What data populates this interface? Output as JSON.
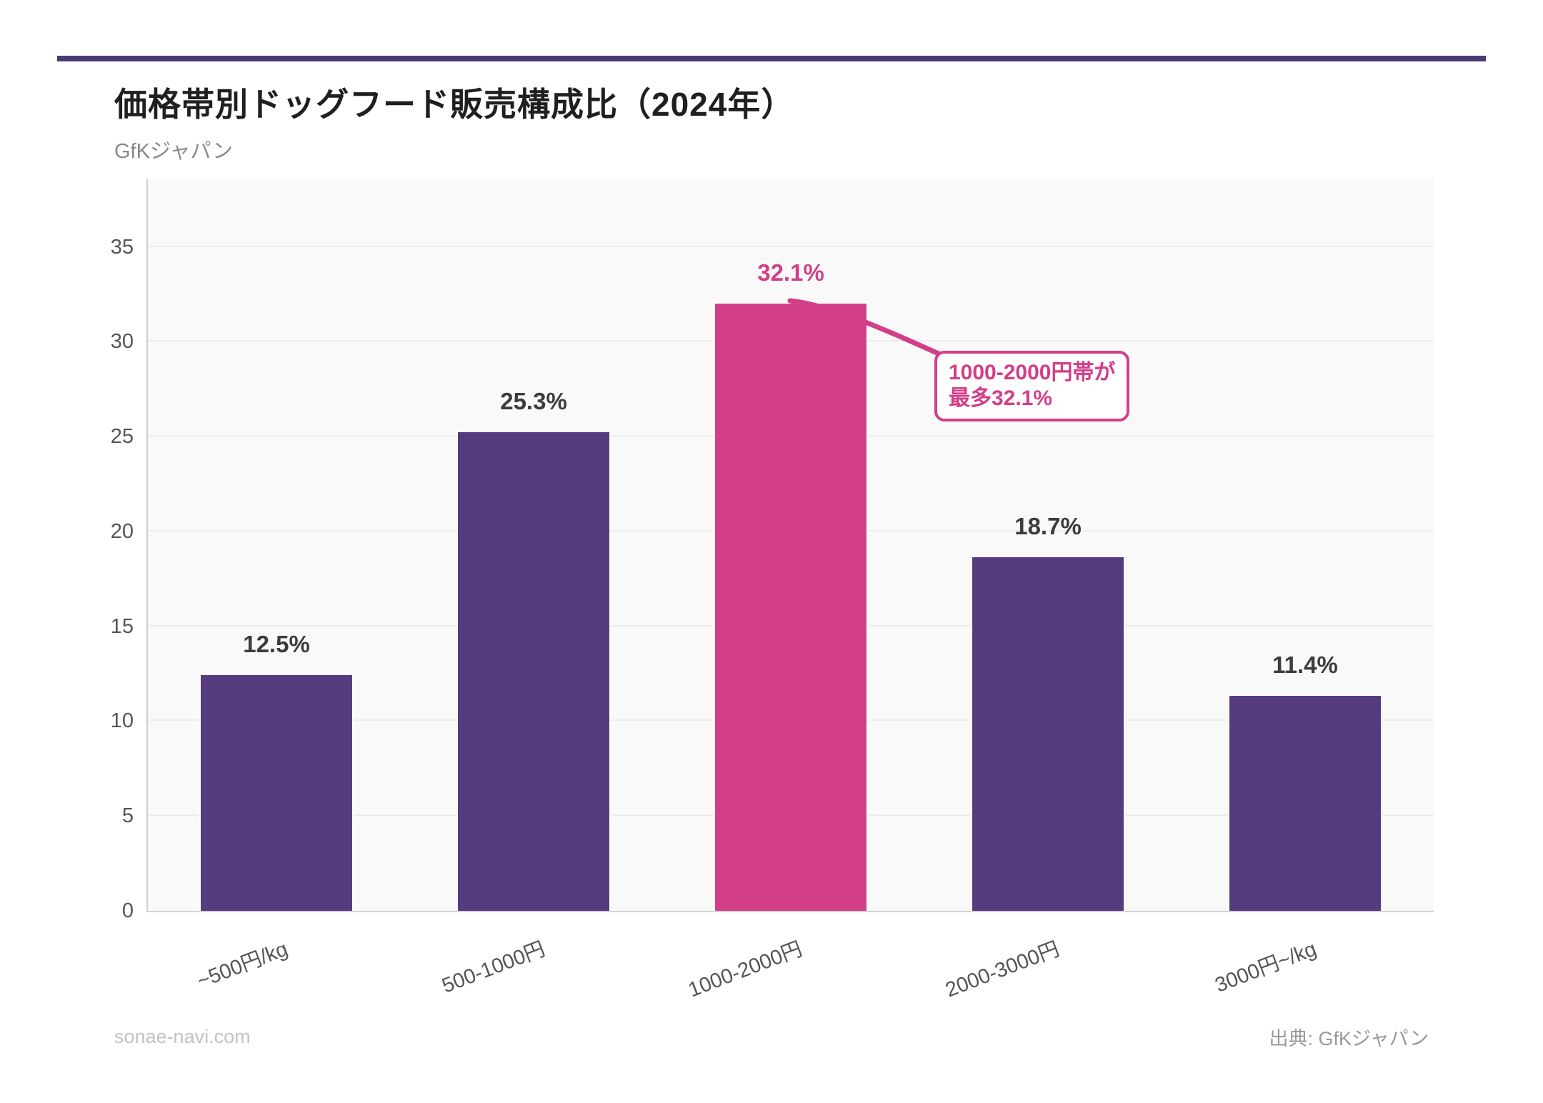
{
  "chart_data": {
    "type": "bar",
    "title": "価格帯別ドッグフード販売構成比（2024年）",
    "subtitle": "GfKジャパン",
    "categories": [
      "~500円/kg",
      "500-1000円",
      "1000-2000円",
      "2000-3000円",
      "3000円~/kg"
    ],
    "values": [
      12.5,
      25.3,
      32.1,
      18.7,
      11.4
    ],
    "value_labels": [
      "12.5%",
      "25.3%",
      "32.1%",
      "18.7%",
      "11.4%"
    ],
    "highlight_index": 2,
    "yticks": [
      0,
      5,
      10,
      15,
      20,
      25,
      30,
      35
    ],
    "ylim": [
      0,
      38.6
    ],
    "grid": true,
    "legend_position": "none",
    "bar_color": "#553c7e",
    "highlight_color": "#d33e88",
    "annotation": {
      "line1": "1000-2000円帯が",
      "line2": "最多32.1%"
    }
  },
  "accent": {
    "rule_color": "#4c3a75"
  },
  "footer": {
    "left": "sonae-navi.com",
    "right": "出典: GfKジャパン"
  }
}
